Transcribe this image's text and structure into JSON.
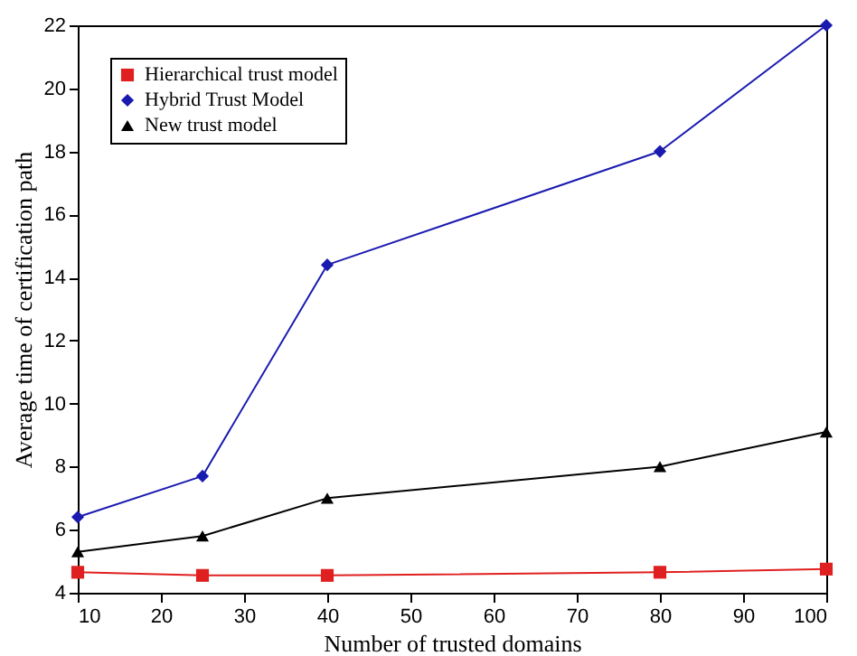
{
  "chart_data": {
    "type": "line",
    "xlabel": "Number of trusted domains",
    "ylabel": "Average time of certification path",
    "x": [
      10,
      25,
      40,
      80,
      100
    ],
    "series": [
      {
        "name": "Hierarchical trust model",
        "color": "#e02020",
        "marker": "square",
        "values": [
          4.65,
          4.55,
          4.55,
          4.65,
          4.75
        ]
      },
      {
        "name": "Hybrid Trust Model",
        "color": "#1a1ab0",
        "marker": "diamond",
        "values": [
          6.4,
          7.7,
          14.4,
          18,
          22
        ]
      },
      {
        "name": "New trust model",
        "color": "#000000",
        "marker": "triangle",
        "values": [
          5.3,
          5.8,
          7.0,
          8.0,
          9.1
        ]
      }
    ],
    "xlim": [
      10,
      100
    ],
    "xticks": [
      10,
      20,
      30,
      40,
      50,
      60,
      70,
      80,
      90,
      100
    ],
    "ylim": [
      4,
      22
    ],
    "yticks": [
      4,
      6,
      8,
      10,
      12,
      14,
      16,
      18,
      20,
      22
    ],
    "legend": "top left",
    "line_style": "solid",
    "grid": false
  }
}
